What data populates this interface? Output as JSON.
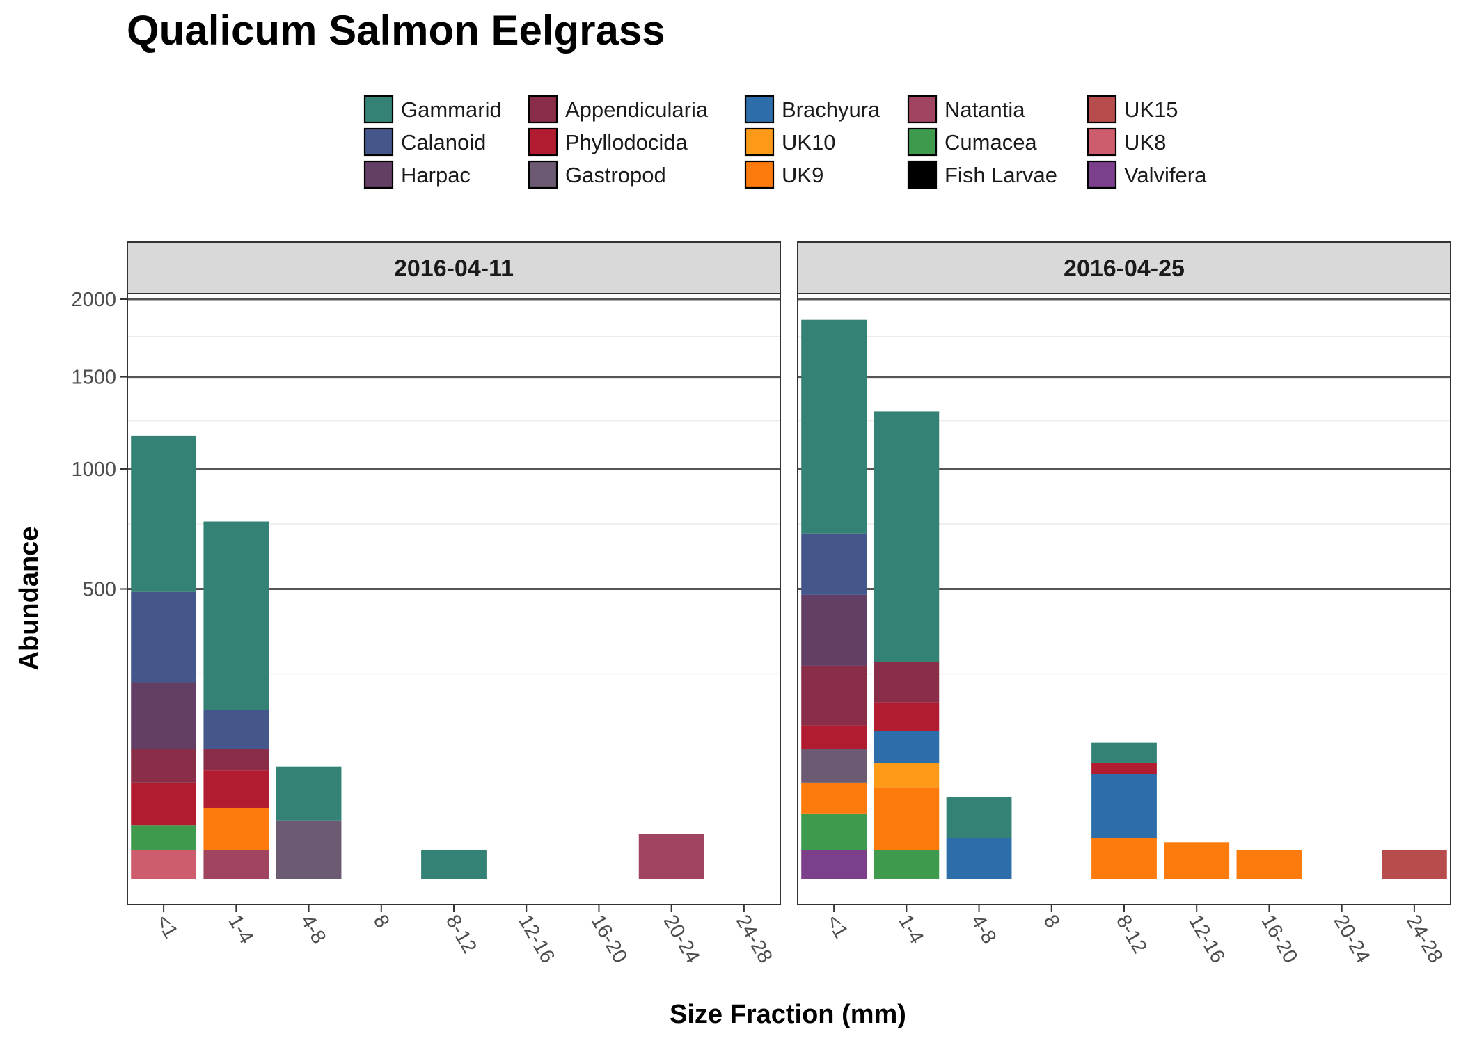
{
  "chart_data": {
    "type": "bar",
    "stacked": true,
    "title": "Qualicum Salmon Eelgrass",
    "xlabel": "Size Fraction (mm)",
    "ylabel": "Abundance",
    "y_scale": "sqrt",
    "ylim": [
      0,
      2080
    ],
    "y_major_breaks": [
      500,
      1000,
      1500,
      2000
    ],
    "y_tick_labels": [
      "500",
      "1000",
      "1500",
      "2000"
    ],
    "y_minor_breaks": [
      250,
      750,
      1250,
      1750
    ],
    "categories": [
      "<1",
      "1-4",
      "4-8",
      "8",
      "8-12",
      "12-16",
      "16-20",
      "20-24",
      "24-28"
    ],
    "legend": {
      "position": "top",
      "entries": [
        {
          "name": "Gammarid",
          "color": "#348276"
        },
        {
          "name": "Calanoid",
          "color": "#45568A"
        },
        {
          "name": "Harpac",
          "color": "#633F65"
        },
        {
          "name": "Appendicularia",
          "color": "#892D48"
        },
        {
          "name": "Phyllodocida",
          "color": "#B11C30"
        },
        {
          "name": "Gastropod",
          "color": "#6C5A72"
        },
        {
          "name": "Brachyura",
          "color": "#2C6DAA"
        },
        {
          "name": "UK10",
          "color": "#FD9A18"
        },
        {
          "name": "UK9",
          "color": "#FD7B0C"
        },
        {
          "name": "Natantia",
          "color": "#A04460"
        },
        {
          "name": "Cumacea",
          "color": "#3E9A4C"
        },
        {
          "name": "Fish Larvae",
          "color": "#000000"
        },
        {
          "name": "UK15",
          "color": "#B74C4C"
        },
        {
          "name": "UK8",
          "color": "#CD5C6C"
        },
        {
          "name": "Valvifera",
          "color": "#7B3F8C"
        }
      ]
    },
    "panels": [
      {
        "label": "2016-04-11",
        "stacks": [
          {
            "category": "<1",
            "segments": [
              {
                "series": "UK8",
                "value": 5
              },
              {
                "series": "Cumacea",
                "value": 12
              },
              {
                "series": "Phyllodocida",
                "value": 38
              },
              {
                "series": "Appendicularia",
                "value": 45
              },
              {
                "series": "Harpac",
                "value": 130
              },
              {
                "series": "Calanoid",
                "value": 260
              },
              {
                "series": "Gammarid",
                "value": 680
              }
            ]
          },
          {
            "category": "1-4",
            "segments": [
              {
                "series": "Natantia",
                "value": 5
              },
              {
                "series": "UK9",
                "value": 25
              },
              {
                "series": "Phyllodocida",
                "value": 40
              },
              {
                "series": "Appendicularia",
                "value": 30
              },
              {
                "series": "Calanoid",
                "value": 70
              },
              {
                "series": "Gammarid",
                "value": 590
              }
            ]
          },
          {
            "category": "4-8",
            "segments": [
              {
                "series": "Gastropod",
                "value": 20
              },
              {
                "series": "Gammarid",
                "value": 55
              }
            ]
          },
          {
            "category": "8-12",
            "segments": [
              {
                "series": "Gammarid",
                "value": 5
              }
            ]
          },
          {
            "category": "20-24",
            "segments": [
              {
                "series": "Natantia",
                "value": 12
              }
            ]
          }
        ]
      },
      {
        "label": "2016-04-25",
        "stacks": [
          {
            "category": "<1",
            "segments": [
              {
                "series": "Valvifera",
                "value": 5
              },
              {
                "series": "Cumacea",
                "value": 20
              },
              {
                "series": "UK9",
                "value": 30
              },
              {
                "series": "Gastropod",
                "value": 45
              },
              {
                "series": "Phyllodocida",
                "value": 40
              },
              {
                "series": "Appendicularia",
                "value": 130
              },
              {
                "series": "Harpac",
                "value": 210
              },
              {
                "series": "Calanoid",
                "value": 230
              },
              {
                "series": "Gammarid",
                "value": 1150
              }
            ]
          },
          {
            "category": "1-4",
            "segments": [
              {
                "series": "Cumacea",
                "value": 5
              },
              {
                "series": "UK9",
                "value": 45
              },
              {
                "series": "UK10",
                "value": 30
              },
              {
                "series": "Brachyura",
                "value": 50
              },
              {
                "series": "Phyllodocida",
                "value": 55
              },
              {
                "series": "Appendicularia",
                "value": 95
              },
              {
                "series": "Gammarid",
                "value": 1020
              }
            ]
          },
          {
            "category": "4-8",
            "segments": [
              {
                "series": "Brachyura",
                "value": 10
              },
              {
                "series": "Gammarid",
                "value": 30
              }
            ]
          },
          {
            "category": "8-12",
            "segments": [
              {
                "series": "UK9",
                "value": 10
              },
              {
                "series": "Brachyura",
                "value": 55
              },
              {
                "series": "Phyllodocida",
                "value": 15
              },
              {
                "series": "Gammarid",
                "value": 30
              }
            ]
          },
          {
            "category": "12-16",
            "segments": [
              {
                "series": "UK9",
                "value": 8
              }
            ]
          },
          {
            "category": "16-20",
            "segments": [
              {
                "series": "UK9",
                "value": 5
              }
            ]
          },
          {
            "category": "24-28",
            "segments": [
              {
                "series": "UK15",
                "value": 5
              }
            ]
          }
        ]
      }
    ]
  }
}
